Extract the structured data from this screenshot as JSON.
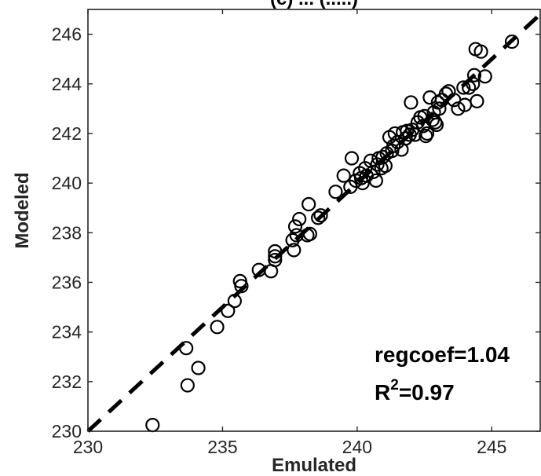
{
  "chart_data": {
    "type": "scatter",
    "title": "(c) ... (.....)",
    "xlabel": "Emulated",
    "ylabel": "Modeled",
    "xlim": [
      230,
      246.8
    ],
    "ylim": [
      230,
      247
    ],
    "xticks": [
      230,
      235,
      240,
      245
    ],
    "yticks": [
      230,
      232,
      234,
      236,
      238,
      240,
      242,
      244,
      246
    ],
    "xtick_labels": [
      "230",
      "235",
      "240",
      "245"
    ],
    "ytick_labels": [
      "230",
      "232",
      "234",
      "236",
      "238",
      "240",
      "242",
      "244",
      "246"
    ],
    "grid": false,
    "reference_line": {
      "style": "dashed",
      "color": "#000000",
      "from": [
        230,
        230
      ],
      "to": [
        246.8,
        246.8
      ]
    },
    "annotations": {
      "regcoef": "regcoef=1.04",
      "r2_prefix": "R",
      "r2_sup": "2",
      "r2_suffix": "=0.97"
    },
    "marker": {
      "shape": "open-circle",
      "color": "#000000"
    },
    "points": [
      [
        232.4,
        230.25
      ],
      [
        233.7,
        231.85
      ],
      [
        234.1,
        232.55
      ],
      [
        233.65,
        233.35
      ],
      [
        234.8,
        234.2
      ],
      [
        235.2,
        234.85
      ],
      [
        235.45,
        235.25
      ],
      [
        235.7,
        235.85
      ],
      [
        235.65,
        236.05
      ],
      [
        236.35,
        236.5
      ],
      [
        236.8,
        236.45
      ],
      [
        236.95,
        236.9
      ],
      [
        236.95,
        237.05
      ],
      [
        236.95,
        237.25
      ],
      [
        237.65,
        237.3
      ],
      [
        237.6,
        237.7
      ],
      [
        237.75,
        237.9
      ],
      [
        237.7,
        238.25
      ],
      [
        237.85,
        238.55
      ],
      [
        238.15,
        237.9
      ],
      [
        238.25,
        237.95
      ],
      [
        238.2,
        239.15
      ],
      [
        238.55,
        238.6
      ],
      [
        238.65,
        238.7
      ],
      [
        239.2,
        239.65
      ],
      [
        239.5,
        240.3
      ],
      [
        239.75,
        239.85
      ],
      [
        239.8,
        241.0
      ],
      [
        239.95,
        240.1
      ],
      [
        240.1,
        240.4
      ],
      [
        240.15,
        240.2
      ],
      [
        240.2,
        240.0
      ],
      [
        240.3,
        240.6
      ],
      [
        240.35,
        240.3
      ],
      [
        240.5,
        240.9
      ],
      [
        240.6,
        240.45
      ],
      [
        240.7,
        240.1
      ],
      [
        240.75,
        240.75
      ],
      [
        240.8,
        241.0
      ],
      [
        240.9,
        240.6
      ],
      [
        240.95,
        241.05
      ],
      [
        241.05,
        240.7
      ],
      [
        241.1,
        241.2
      ],
      [
        241.2,
        241.85
      ],
      [
        241.3,
        241.3
      ],
      [
        241.35,
        241.5
      ],
      [
        241.4,
        242.0
      ],
      [
        241.5,
        241.65
      ],
      [
        241.65,
        241.35
      ],
      [
        241.7,
        242.05
      ],
      [
        241.8,
        241.8
      ],
      [
        241.85,
        242.1
      ],
      [
        241.95,
        241.95
      ],
      [
        242.0,
        243.25
      ],
      [
        242.05,
        242.15
      ],
      [
        242.15,
        241.95
      ],
      [
        242.25,
        242.45
      ],
      [
        242.35,
        242.65
      ],
      [
        242.45,
        242.3
      ],
      [
        242.5,
        242.7
      ],
      [
        242.55,
        241.9
      ],
      [
        242.6,
        242.0
      ],
      [
        242.7,
        243.45
      ],
      [
        242.8,
        242.55
      ],
      [
        242.85,
        242.85
      ],
      [
        242.9,
        242.45
      ],
      [
        242.95,
        242.35
      ],
      [
        243.0,
        243.25
      ],
      [
        243.05,
        243.0
      ],
      [
        243.15,
        243.35
      ],
      [
        243.3,
        243.6
      ],
      [
        243.4,
        243.7
      ],
      [
        243.6,
        243.35
      ],
      [
        243.75,
        243.0
      ],
      [
        243.95,
        243.85
      ],
      [
        244.0,
        243.15
      ],
      [
        244.15,
        243.85
      ],
      [
        244.3,
        244.0
      ],
      [
        244.35,
        244.35
      ],
      [
        244.4,
        245.4
      ],
      [
        244.45,
        243.3
      ],
      [
        244.6,
        245.3
      ],
      [
        244.75,
        244.3
      ],
      [
        245.75,
        245.7
      ]
    ]
  }
}
